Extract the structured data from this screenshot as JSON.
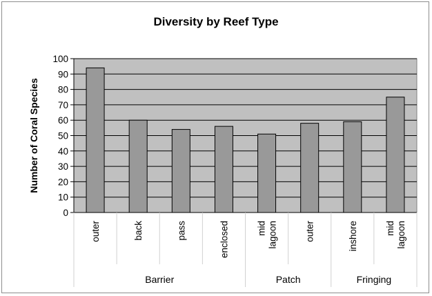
{
  "chart_data": {
    "type": "bar",
    "title": "Diversity by Reef Type",
    "ylabel": "Number of Coral Species",
    "xlabel": "",
    "ylim": [
      0,
      100
    ],
    "yticks": [
      0,
      10,
      20,
      30,
      40,
      50,
      60,
      70,
      80,
      90,
      100
    ],
    "grid": true,
    "legend": "none",
    "bar_color": "#999999",
    "plot_background": "#c0c0c0",
    "categories": [
      {
        "lines": [
          "outer"
        ],
        "group": "Barrier"
      },
      {
        "lines": [
          "back"
        ],
        "group": "Barrier"
      },
      {
        "lines": [
          "pass"
        ],
        "group": "Barrier"
      },
      {
        "lines": [
          "enclosed"
        ],
        "group": "Barrier"
      },
      {
        "lines": [
          "mid",
          "lagoon"
        ],
        "group": "Patch"
      },
      {
        "lines": [
          "outer"
        ],
        "group": "Patch"
      },
      {
        "lines": [
          "inshore"
        ],
        "group": "Fringing"
      },
      {
        "lines": [
          "mid",
          "lagoon"
        ],
        "group": "Fringing"
      }
    ],
    "values": [
      94,
      60,
      54,
      56,
      51,
      58,
      59,
      75
    ],
    "groups": [
      {
        "name": "Barrier",
        "count": 4
      },
      {
        "name": "Patch",
        "count": 2
      },
      {
        "name": "Fringing",
        "count": 2
      }
    ]
  }
}
